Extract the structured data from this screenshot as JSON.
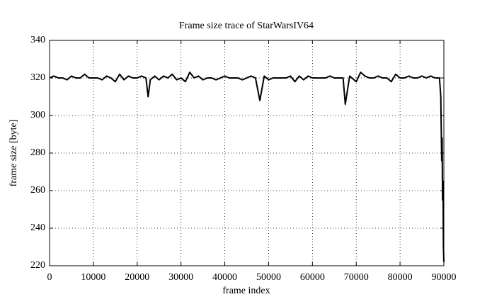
{
  "chart_data": {
    "type": "line",
    "title": "Frame size trace of StarWarsIV64",
    "x_label": "frame index",
    "y_label": "frame size [byte]",
    "color": "#000000",
    "grid": true,
    "xlim": [
      0,
      90000
    ],
    "ylim": [
      220,
      340
    ],
    "xticks": [
      0,
      10000,
      20000,
      30000,
      40000,
      50000,
      60000,
      70000,
      80000,
      90000
    ],
    "yticks": [
      220,
      240,
      260,
      280,
      300,
      320,
      340
    ],
    "x": [
      0,
      1000,
      2000,
      3000,
      4000,
      5000,
      6000,
      7000,
      8000,
      9000,
      10000,
      11000,
      12000,
      13000,
      14000,
      15000,
      16000,
      17000,
      18000,
      19000,
      20000,
      21000,
      22000,
      22500,
      23000,
      24000,
      25000,
      26000,
      27000,
      28000,
      29000,
      30000,
      31000,
      32000,
      33000,
      34000,
      35000,
      36000,
      37000,
      38000,
      39000,
      40000,
      41000,
      42000,
      43000,
      44000,
      45000,
      46000,
      47000,
      48000,
      49000,
      50000,
      51000,
      52000,
      53000,
      54000,
      55000,
      56000,
      57000,
      58000,
      59000,
      60000,
      61000,
      62000,
      63000,
      64000,
      65000,
      66000,
      67000,
      67500,
      68500,
      69000,
      70000,
      71000,
      72000,
      73000,
      74000,
      75000,
      76000,
      77000,
      78000,
      79000,
      80000,
      81000,
      82000,
      83000,
      84000,
      85000,
      86000,
      87000,
      88000,
      89000,
      89300,
      89500,
      89600,
      89700,
      89800,
      89900,
      90000
    ],
    "values": [
      320,
      321,
      320,
      320,
      319,
      321,
      320,
      320,
      322,
      320,
      320,
      320,
      319,
      321,
      320,
      318,
      322,
      319,
      321,
      320,
      320,
      321,
      320,
      310,
      319,
      321,
      319,
      321,
      320,
      322,
      319,
      320,
      318,
      323,
      320,
      321,
      319,
      320,
      320,
      319,
      320,
      321,
      320,
      320,
      320,
      319,
      320,
      321,
      320,
      308,
      321,
      319,
      320,
      320,
      320,
      320,
      321,
      318,
      321,
      319,
      321,
      320,
      320,
      320,
      320,
      321,
      320,
      320,
      320,
      306,
      321,
      320,
      318,
      323,
      321,
      320,
      320,
      321,
      320,
      320,
      318,
      322,
      320,
      320,
      321,
      320,
      320,
      321,
      320,
      321,
      320,
      320,
      310,
      276,
      288,
      255,
      265,
      230,
      222
    ]
  }
}
